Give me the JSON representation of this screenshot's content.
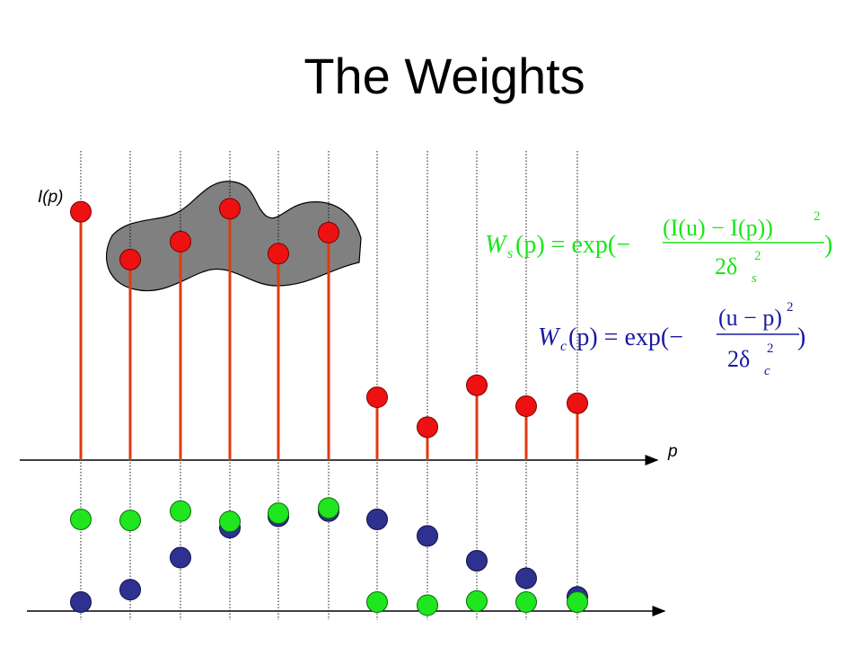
{
  "slide": {
    "title": "The Weights",
    "y_axis_label": "I(p)",
    "x_axis_label": "p"
  },
  "colors": {
    "stem": "#e03a10",
    "red_dot": "#ee1111",
    "blue_dot": "#2e318f",
    "green_dot": "#1fe61f",
    "blob_fill": "#808080",
    "formula_spatial": "#19e619",
    "formula_range": "#1a1aa0"
  },
  "chart_data": {
    "type": "scatter",
    "description_of_marks": "stem plot of intensity per pixel plus two rows of weight dots",
    "pixels": [
      1,
      2,
      3,
      4,
      5,
      6,
      7,
      8,
      9,
      10,
      11
    ],
    "intensity": [
      0.83,
      0.67,
      0.73,
      0.84,
      0.69,
      0.76,
      0.21,
      0.11,
      0.25,
      0.18,
      0.19
    ],
    "highlighted_neighborhood": [
      2,
      3,
      4,
      5,
      6
    ],
    "bottom_dots_blue_level": [
      0.0,
      0.12,
      0.43,
      0.72,
      0.83,
      0.88,
      0.8,
      0.64,
      0.4,
      0.23,
      0.05
    ],
    "bottom_dots_green_level": [
      0.8,
      0.79,
      0.88,
      0.78,
      0.86,
      0.91,
      0.0,
      -0.03,
      0.01,
      0.0,
      0.0
    ]
  },
  "formulas": {
    "spatial": {
      "lhs": "W",
      "lhs_sub": "s",
      "arg": "(p) = exp(−",
      "numerator": "(I(u) − I(p))",
      "numerator_exp": "2",
      "denominator": "2δ",
      "denominator_sub": "s",
      "denominator_exp": "2",
      "close": ")"
    },
    "range": {
      "lhs": "W",
      "lhs_sub": "c",
      "arg": "(p) = exp(−",
      "numerator": "(u − p)",
      "numerator_exp": "2",
      "denominator": "2δ",
      "denominator_sub": "c",
      "denominator_exp": "2",
      "close": ")"
    }
  }
}
